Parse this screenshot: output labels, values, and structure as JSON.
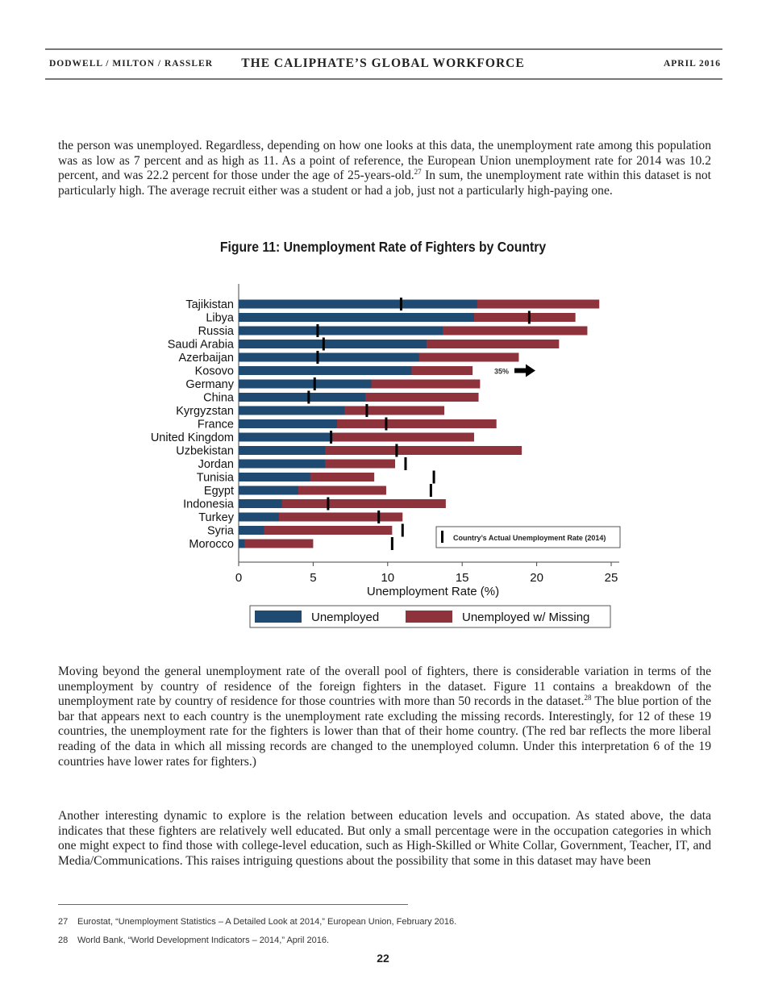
{
  "header": {
    "authors": "DODWELL / MILTON / RASSLER",
    "title": "THE CALIPHATE’S GLOBAL WORKFORCE",
    "date": "APRIL 2016"
  },
  "paragraphs": {
    "p1_a": "the person was unemployed. Regardless, depending on how one looks at this data, the unemployment rate among this population was as low as  7 percent and as high as 11. As a point of reference, the European Union unemployment rate for 2014 was 10.2 percent, and was 22.2 percent for those under the age of 25-years-old.",
    "p1_sup": "27",
    "p1_b": " In sum, the unemployment rate within this dataset is not particularly high. The average recruit either was a student or had a job, just not a particularly high-paying one.",
    "p2_a": "Moving beyond the general unemployment rate of the overall pool of fighters, there is considerable variation in terms of the unemployment by country of residence of the foreign fighters in the dataset. Figure 11 contains a breakdown of the unemployment rate by country of residence for those countries with more than 50 records in the dataset.",
    "p2_sup": "28",
    "p2_b": " The blue portion of the bar that appears next to each country is the unemployment rate excluding the missing records. Interestingly, for 12 of these 19 countries, the unemployment rate for the fighters is lower than that of their home country. (The red bar reflects the more liberal reading of the data in which all missing records are changed to the unemployed column. Under this interpretation 6 of the 19 countries have lower rates for fighters.)",
    "p3": "Another interesting dynamic to explore is the relation between education levels and occupation. As stated above, the data indicates that these fighters are relatively well educated. But only a small percentage were in the occupation categories in which one might expect to find those with college-level education, such as High-Skilled or White Collar, Government, Teacher, IT, and Media/Communications. This raises intriguing questions about the possibility that some in this dataset may have been"
  },
  "figure_title": "Figure 11: Unemployment Rate of Fighters by Country",
  "chart_data": {
    "type": "bar",
    "orientation": "horizontal",
    "stacked": "overlay",
    "title": "Figure 11: Unemployment Rate of Fighters by Country",
    "xlabel": "Unemployment Rate (%)",
    "ylabel": "",
    "xlim": [
      0,
      25
    ],
    "xticks": [
      0,
      5,
      10,
      15,
      20,
      25
    ],
    "grid": false,
    "legend_placement": "bottom",
    "categories": [
      "Tajikistan",
      "Libya",
      "Russia",
      "Saudi Arabia",
      "Azerbaijan",
      "Kosovo",
      "Germany",
      "China",
      "Kyrgyzstan",
      "France",
      "United Kingdom",
      "Uzbekistan",
      "Jordan",
      "Tunisia",
      "Egypt",
      "Indonesia",
      "Turkey",
      "Syria",
      "Morocco"
    ],
    "series": [
      {
        "name": "Unemployed",
        "color": "#1f4a72",
        "values": [
          16.0,
          15.8,
          13.7,
          12.6,
          12.1,
          11.6,
          8.9,
          8.5,
          7.1,
          6.6,
          6.3,
          5.8,
          5.8,
          4.8,
          4.0,
          2.9,
          2.7,
          1.7,
          0.4
        ]
      },
      {
        "name": "Unemployed w/ Missing",
        "color": "#8e333c",
        "values": [
          24.2,
          22.6,
          23.4,
          21.5,
          18.8,
          15.7,
          16.2,
          16.1,
          13.8,
          17.3,
          15.8,
          19.0,
          10.5,
          9.1,
          9.9,
          13.9,
          11.0,
          10.3,
          5.0
        ]
      }
    ],
    "markers": {
      "name": "Country’s Actual Unemployment Rate (2014)",
      "values": [
        10.9,
        19.5,
        5.3,
        5.7,
        5.3,
        35,
        5.1,
        4.7,
        8.6,
        9.9,
        6.2,
        10.6,
        11.2,
        13.1,
        12.9,
        6.0,
        9.4,
        11.0,
        10.3
      ]
    },
    "annotations": [
      {
        "category": "Kosovo",
        "text": "35%",
        "icon": "arrow-right-icon"
      }
    ]
  },
  "footnotes": [
    {
      "num": "27",
      "text": "Eurostat, “Unemployment Statistics – A Detailed Look at 2014,” European Union, February 2016."
    },
    {
      "num": "28",
      "text": "World Bank, “World Development Indicators – 2014,” April 2016."
    }
  ],
  "page_number": "22"
}
